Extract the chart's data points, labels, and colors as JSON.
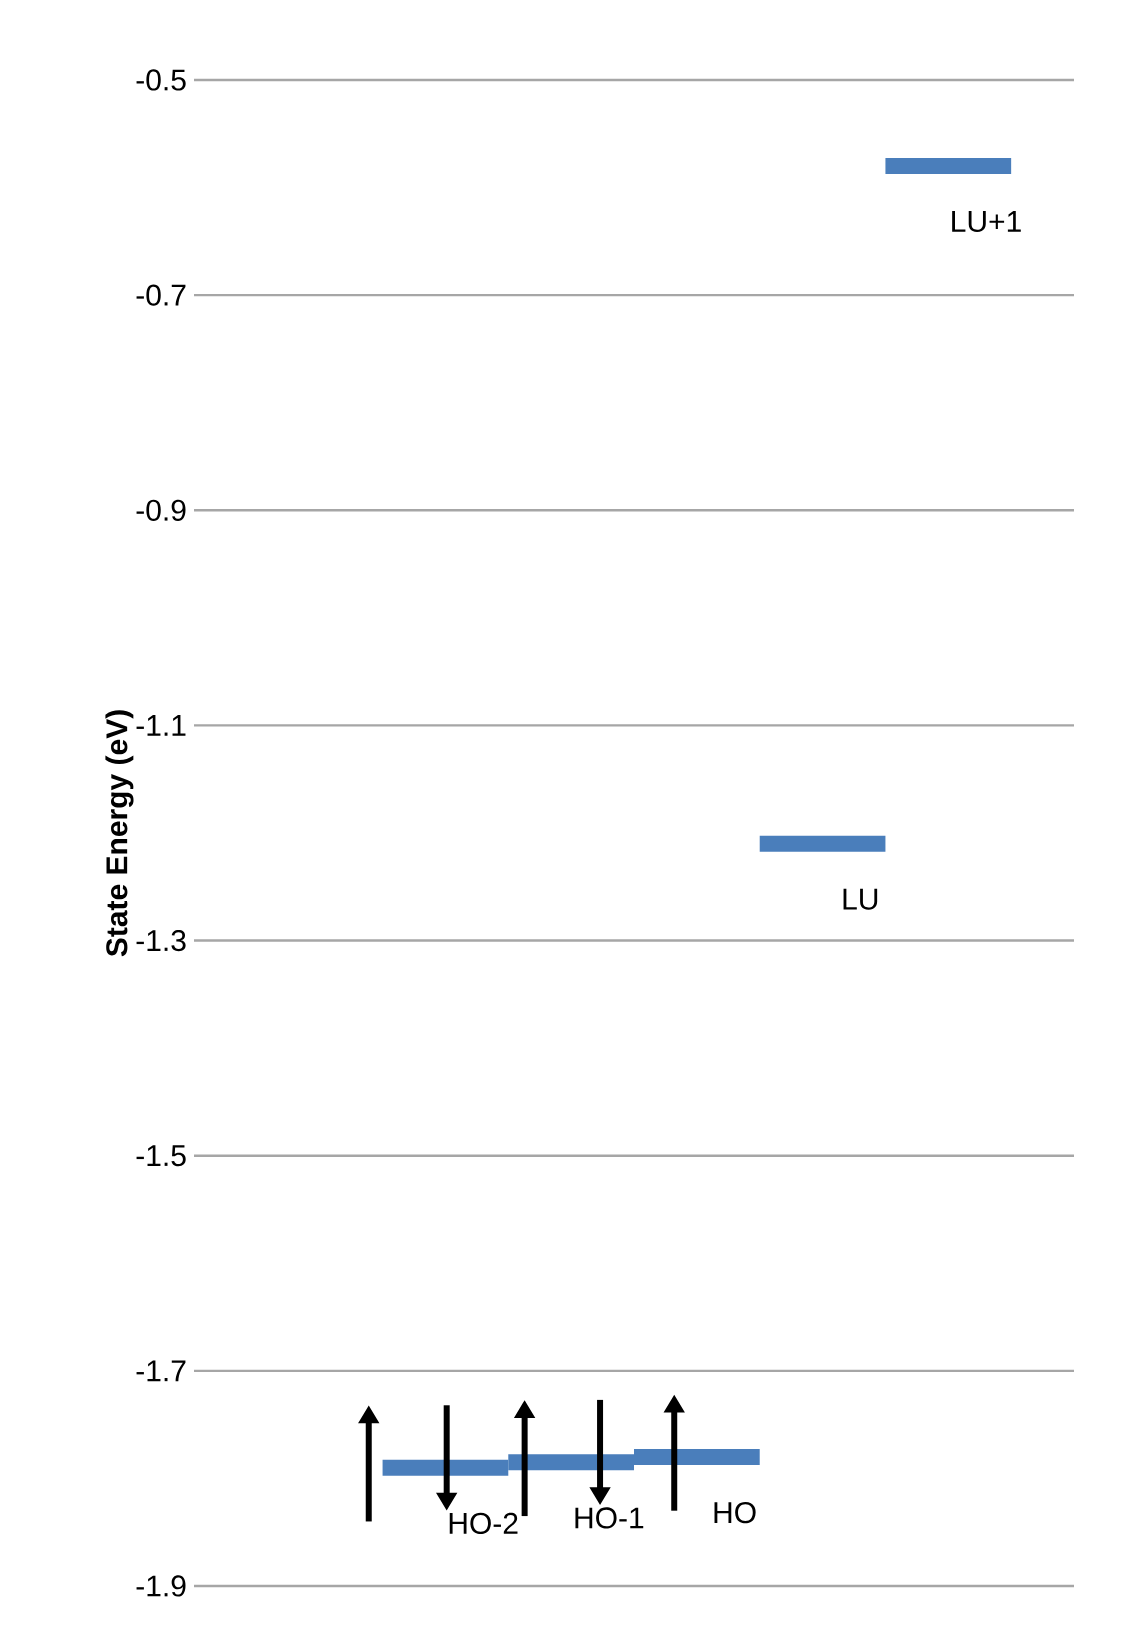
{
  "chart_data": {
    "type": "line",
    "ylabel": "State Energy (eV)",
    "categories": [
      null,
      null,
      null,
      null,
      null,
      null,
      null
    ],
    "series": [
      {
        "name": "HO-2",
        "color": "#4a7ebb",
        "values": [
          null,
          -1.79,
          -1.79,
          null,
          null,
          null,
          null
        ]
      },
      {
        "name": "HO-1",
        "color": "#4a7ebb",
        "values": [
          null,
          null,
          -1.785,
          -1.785,
          null,
          null,
          null
        ]
      },
      {
        "name": "HO",
        "color": "#4a7ebb",
        "values": [
          null,
          null,
          null,
          -1.78,
          -1.78,
          null,
          null
        ]
      },
      {
        "name": "LU",
        "color": "#4a7ebb",
        "values": [
          null,
          null,
          null,
          null,
          -1.21,
          -1.21,
          null
        ]
      },
      {
        "name": "LU+1",
        "color": "#4a7ebb",
        "values": [
          null,
          null,
          null,
          null,
          null,
          -0.58,
          -0.58
        ]
      }
    ],
    "ylim": [
      -1.9,
      -0.5
    ],
    "yticks": [
      -1.9,
      -1.7,
      -1.5,
      -1.3,
      -1.1,
      -0.9,
      -0.7,
      -0.5
    ],
    "grid": "y",
    "tick_labels": "y",
    "legend": false,
    "marker": "none",
    "line_style": "solid"
  }
}
